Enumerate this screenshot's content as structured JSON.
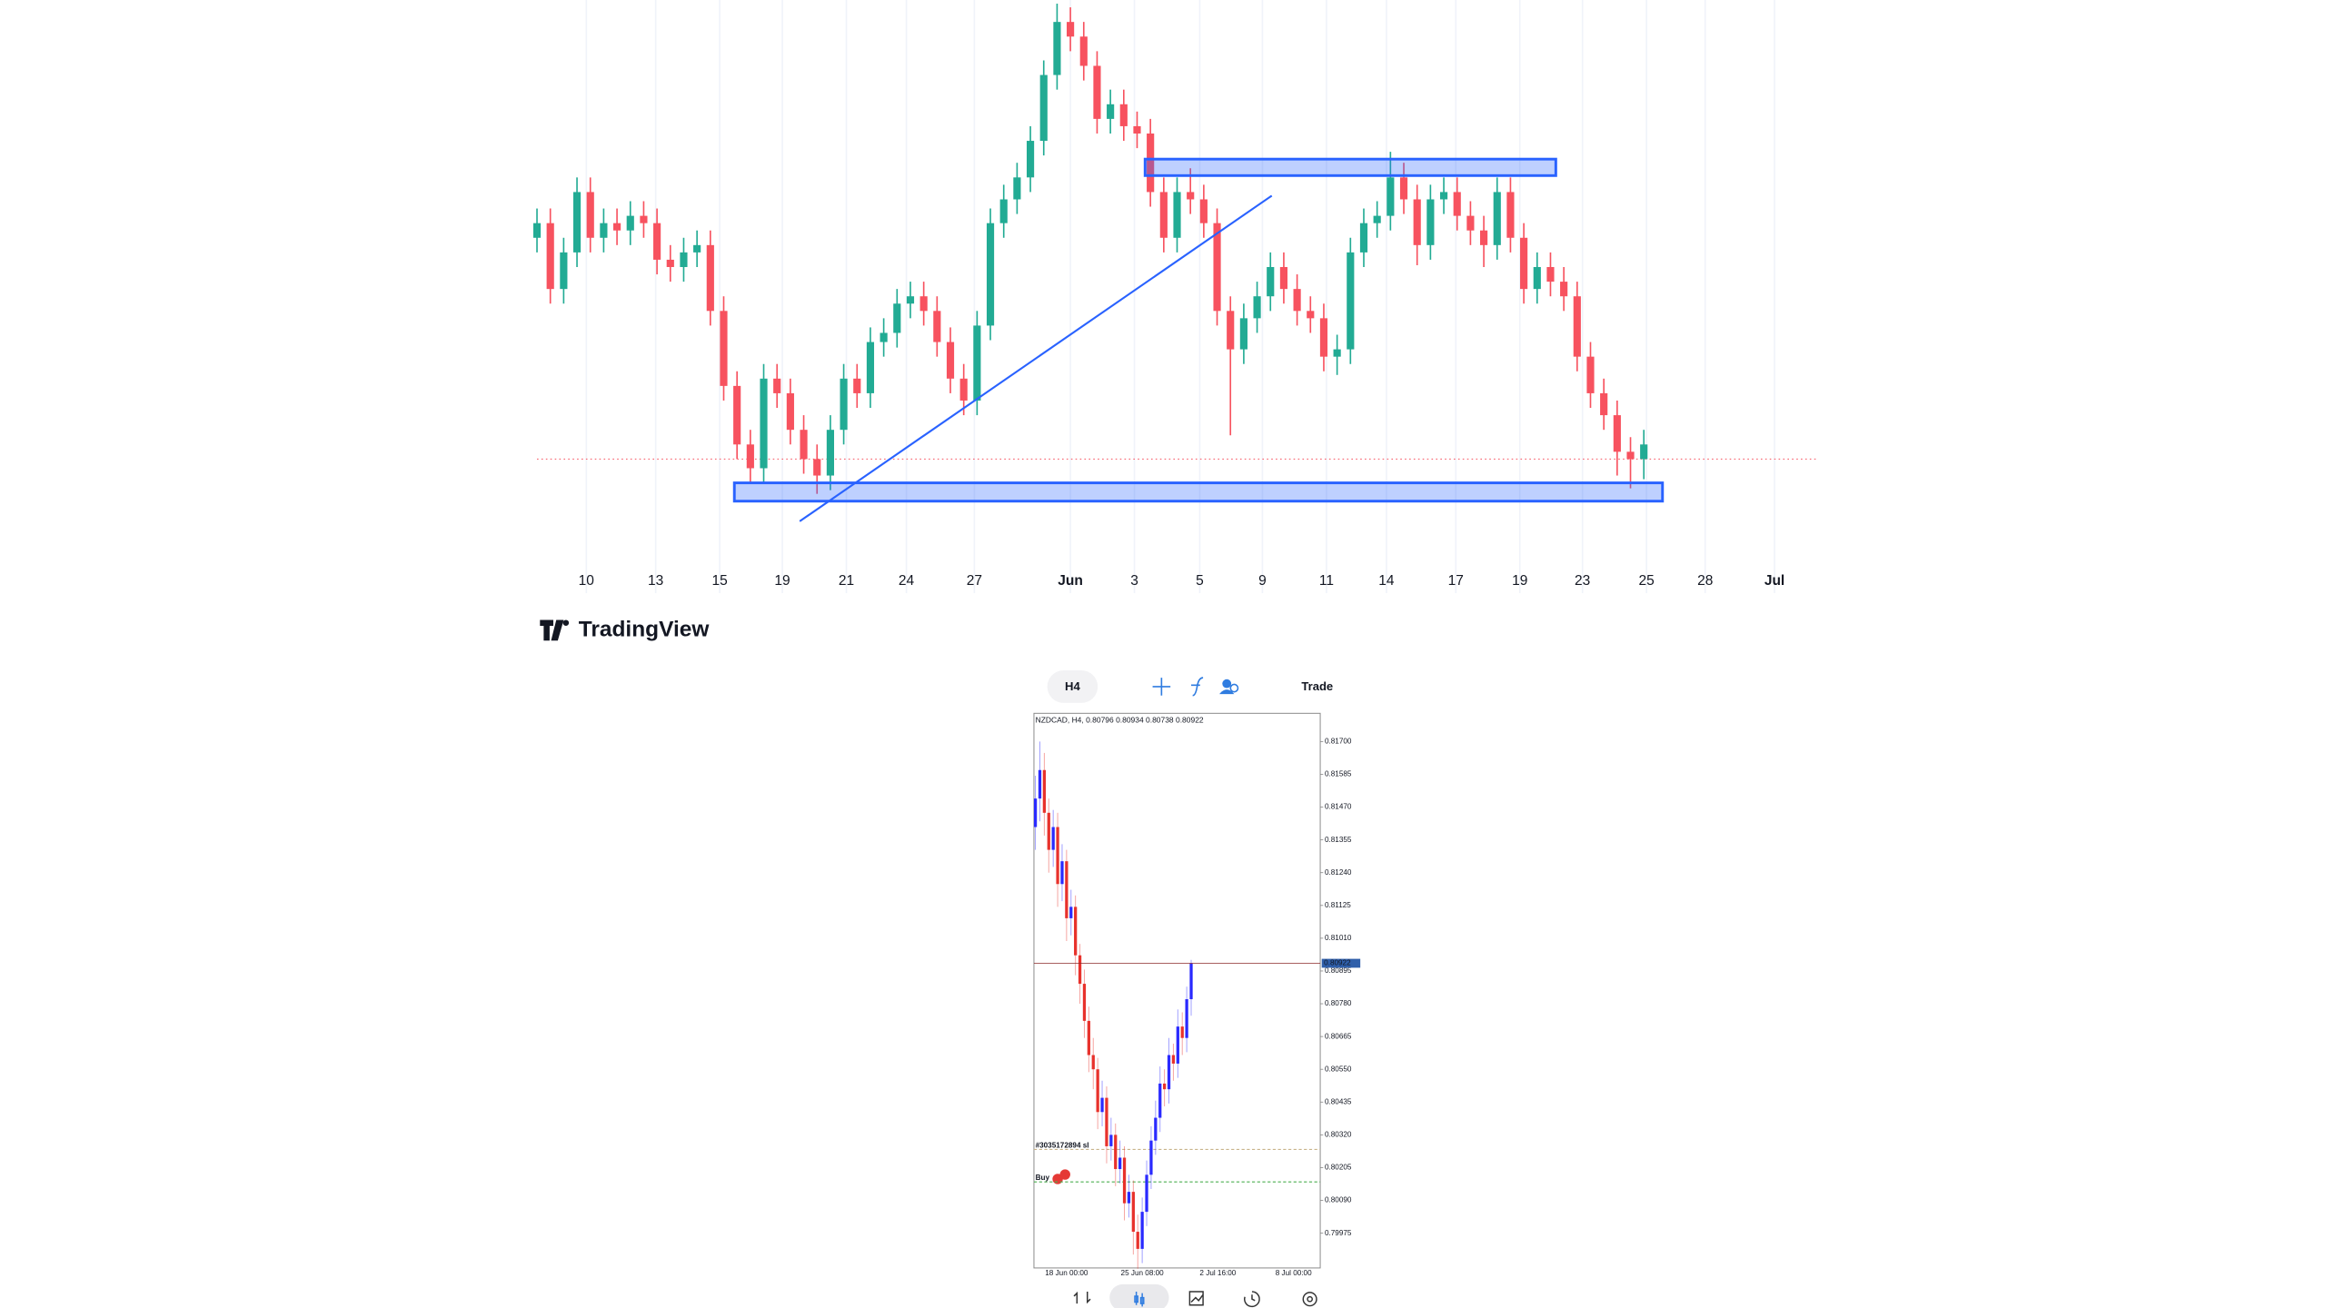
{
  "chart_data": [
    {
      "type": "candlestick",
      "logo": "TradingView",
      "up_color": "#22ab94",
      "down_color": "#f7525f",
      "zone_color": "#2962ff",
      "price_line_color": "#f7525f",
      "grid": true,
      "xlim": [
        0,
        96
      ],
      "ylim": [
        0.795,
        0.825
      ],
      "xticks": [
        {
          "value": 3.7,
          "label": "10"
        },
        {
          "value": 8.9,
          "label": "13"
        },
        {
          "value": 13.7,
          "label": "15"
        },
        {
          "value": 18.4,
          "label": "19"
        },
        {
          "value": 23.2,
          "label": "21"
        },
        {
          "value": 27.7,
          "label": "24"
        },
        {
          "value": 32.8,
          "label": "27"
        },
        {
          "value": 40,
          "label": "Jun"
        },
        {
          "value": 44.8,
          "label": "3"
        },
        {
          "value": 49.7,
          "label": "5"
        },
        {
          "value": 54.4,
          "label": "9"
        },
        {
          "value": 59.2,
          "label": "11"
        },
        {
          "value": 63.7,
          "label": "14"
        },
        {
          "value": 68.9,
          "label": "17"
        },
        {
          "value": 73.7,
          "label": "19"
        },
        {
          "value": 78.4,
          "label": "23"
        },
        {
          "value": 83.2,
          "label": "25"
        },
        {
          "value": 87.6,
          "label": "28"
        },
        {
          "value": 92.8,
          "label": "Jul"
        }
      ],
      "open": [
        0.812,
        0.8128,
        0.8092,
        0.8112,
        0.8145,
        0.812,
        0.8128,
        0.8124,
        0.8132,
        0.8128,
        0.8108,
        0.8104,
        0.8112,
        0.8116,
        0.808,
        0.8039,
        0.8007,
        0.7994,
        0.8043,
        0.8035,
        0.8015,
        0.7999,
        0.799,
        0.8015,
        0.8043,
        0.8035,
        0.8063,
        0.8068,
        0.8084,
        0.8088,
        0.808,
        0.8063,
        0.8043,
        0.8031,
        0.8072,
        0.8128,
        0.8141,
        0.8153,
        0.8173,
        0.8209,
        0.8238,
        0.823,
        0.8214,
        0.8185,
        0.8193,
        0.8181,
        0.8177,
        0.8145,
        0.812,
        0.8145,
        0.8141,
        0.8128,
        0.808,
        0.8059,
        0.8076,
        0.8088,
        0.8104,
        0.8092,
        0.808,
        0.8076,
        0.8055,
        0.8059,
        0.8112,
        0.8128,
        0.8132,
        0.8153,
        0.8141,
        0.8116,
        0.8141,
        0.8145,
        0.8132,
        0.8124,
        0.8116,
        0.8145,
        0.812,
        0.8092,
        0.8104,
        0.8096,
        0.8088,
        0.8055,
        0.8035,
        0.8023,
        0.8003,
        0.7999
      ],
      "high": [
        0.8136,
        0.8136,
        0.812,
        0.8153,
        0.8153,
        0.8136,
        0.8136,
        0.814,
        0.814,
        0.8136,
        0.8116,
        0.812,
        0.8124,
        0.8124,
        0.8088,
        0.8047,
        0.8015,
        0.8051,
        0.8051,
        0.8043,
        0.8023,
        0.8007,
        0.8023,
        0.8051,
        0.8051,
        0.8071,
        0.8076,
        0.8092,
        0.8096,
        0.8096,
        0.8088,
        0.8071,
        0.8051,
        0.808,
        0.8136,
        0.8149,
        0.8161,
        0.8181,
        0.8217,
        0.8248,
        0.8246,
        0.8238,
        0.8222,
        0.8201,
        0.8201,
        0.8189,
        0.8185,
        0.8153,
        0.8153,
        0.8158,
        0.8149,
        0.8136,
        0.8088,
        0.8084,
        0.8096,
        0.8112,
        0.8112,
        0.81,
        0.8088,
        0.8084,
        0.8067,
        0.812,
        0.8136,
        0.814,
        0.8167,
        0.8161,
        0.8149,
        0.8149,
        0.8153,
        0.8153,
        0.814,
        0.8132,
        0.8153,
        0.8153,
        0.8128,
        0.8112,
        0.8112,
        0.8104,
        0.8096,
        0.8063,
        0.8043,
        0.8031,
        0.8011,
        0.8015
      ],
      "low": [
        0.8112,
        0.8084,
        0.8084,
        0.8104,
        0.8112,
        0.8112,
        0.8116,
        0.8116,
        0.812,
        0.81,
        0.8096,
        0.8096,
        0.8104,
        0.8072,
        0.8031,
        0.7999,
        0.7986,
        0.7986,
        0.8027,
        0.8007,
        0.7991,
        0.798,
        0.7982,
        0.8007,
        0.8027,
        0.8027,
        0.8055,
        0.806,
        0.8076,
        0.8072,
        0.8055,
        0.8035,
        0.8023,
        0.8023,
        0.8064,
        0.812,
        0.8133,
        0.8145,
        0.8165,
        0.8201,
        0.8222,
        0.8206,
        0.8177,
        0.8177,
        0.8173,
        0.8169,
        0.8137,
        0.8112,
        0.8112,
        0.8133,
        0.812,
        0.8072,
        0.8012,
        0.8051,
        0.8068,
        0.808,
        0.8084,
        0.8072,
        0.8068,
        0.8047,
        0.8045,
        0.8051,
        0.8104,
        0.812,
        0.8124,
        0.8133,
        0.8105,
        0.8108,
        0.8133,
        0.8124,
        0.8116,
        0.8104,
        0.8108,
        0.8112,
        0.8084,
        0.8084,
        0.8088,
        0.808,
        0.8047,
        0.8027,
        0.8015,
        0.799,
        0.7983,
        0.7988
      ],
      "close": [
        0.8128,
        0.8092,
        0.8112,
        0.8145,
        0.812,
        0.8128,
        0.8124,
        0.8132,
        0.8128,
        0.8108,
        0.8104,
        0.8112,
        0.8116,
        0.808,
        0.8039,
        0.8007,
        0.7994,
        0.8043,
        0.8035,
        0.8015,
        0.7999,
        0.799,
        0.8015,
        0.8043,
        0.8035,
        0.8063,
        0.8068,
        0.8084,
        0.8088,
        0.808,
        0.8063,
        0.8043,
        0.8031,
        0.8072,
        0.8128,
        0.8141,
        0.8153,
        0.8173,
        0.8209,
        0.8238,
        0.823,
        0.8214,
        0.8185,
        0.8193,
        0.8181,
        0.8177,
        0.8145,
        0.812,
        0.8145,
        0.8141,
        0.8128,
        0.808,
        0.8059,
        0.8076,
        0.8088,
        0.8104,
        0.8092,
        0.808,
        0.8076,
        0.8055,
        0.8059,
        0.8112,
        0.8128,
        0.8132,
        0.8153,
        0.8141,
        0.8116,
        0.8141,
        0.8145,
        0.8132,
        0.8124,
        0.8116,
        0.8145,
        0.812,
        0.8092,
        0.8104,
        0.8096,
        0.8088,
        0.8055,
        0.8035,
        0.8023,
        0.8003,
        0.7999,
        0.8007
      ],
      "zones": [
        {
          "x": [
            45.6,
            76.4
          ],
          "y": [
            0.8154,
            0.8163
          ]
        },
        {
          "x": [
            14.8,
            84.4
          ],
          "y": [
            0.7976,
            0.7986
          ]
        }
      ],
      "trendline": {
        "x": [
          19.7,
          55.1
        ],
        "y": [
          0.7965,
          0.8143
        ]
      },
      "price_line": 0.7999
    },
    {
      "type": "candlestick",
      "title": "NZDCAD, H4, 0.80796 0.80934 0.80738 0.80922",
      "timeframe": "H4",
      "trade_button": "Trade",
      "up_color": "#2a2aff",
      "down_color": "#e8322c",
      "last_price_color": "#2f5faa",
      "xlim": [
        -0.33,
        64
      ],
      "ylim": [
        0.79853,
        0.81799
      ],
      "xticks": [
        {
          "value": 7,
          "label": "18 Jun 00:00"
        },
        {
          "value": 24,
          "label": "25 Jun 08:00"
        },
        {
          "value": 41,
          "label": "2 Jul 16:00"
        },
        {
          "value": 58,
          "label": "8 Jul 00:00"
        }
      ],
      "yticks": [
        {
          "value": 0.817,
          "label": "0.81700"
        },
        0.81585,
        {
          "value": 0.8147,
          "label": "0.81470"
        },
        0.81355,
        {
          "value": 0.8124,
          "label": "0.81240"
        },
        0.81125,
        {
          "value": 0.8101,
          "label": "0.81010"
        },
        0.80895,
        {
          "value": 0.8078,
          "label": "0.80780"
        },
        0.80665,
        {
          "value": 0.8055,
          "label": "0.80550"
        },
        0.80435,
        {
          "value": 0.8032,
          "label": "0.80320"
        },
        0.80205,
        {
          "value": 0.8009,
          "label": "0.80090"
        },
        0.79975
      ],
      "open": [
        0.814,
        0.815,
        0.816,
        0.8145,
        0.8132,
        0.814,
        0.812,
        0.8128,
        0.8108,
        0.8112,
        0.8095,
        0.8085,
        0.8072,
        0.806,
        0.8055,
        0.804,
        0.8045,
        0.8028,
        0.8032,
        0.802,
        0.8024,
        0.8008,
        0.8012,
        0.7998,
        0.7992,
        0.8005,
        0.8018,
        0.803,
        0.8038,
        0.805,
        0.8048,
        0.806,
        0.8057,
        0.807,
        0.8066,
        0.80796
      ],
      "high": [
        0.8158,
        0.817,
        0.8166,
        0.815,
        0.8146,
        0.8145,
        0.8134,
        0.8132,
        0.8118,
        0.8116,
        0.8099,
        0.809,
        0.8077,
        0.8066,
        0.8059,
        0.8051,
        0.8049,
        0.8038,
        0.8036,
        0.803,
        0.8028,
        0.8018,
        0.8016,
        0.8004,
        0.801,
        0.8023,
        0.8035,
        0.8044,
        0.8056,
        0.8055,
        0.8066,
        0.8064,
        0.8076,
        0.8075,
        0.8084,
        0.80934
      ],
      "low": [
        0.8132,
        0.8142,
        0.8137,
        0.8124,
        0.8126,
        0.8112,
        0.8114,
        0.81,
        0.8102,
        0.8088,
        0.8078,
        0.8066,
        0.8054,
        0.8048,
        0.8034,
        0.8035,
        0.8022,
        0.8023,
        0.8014,
        0.8015,
        0.8002,
        0.8003,
        0.799,
        0.7985,
        0.7987,
        0.8,
        0.8013,
        0.8025,
        0.8033,
        0.8042,
        0.8043,
        0.8051,
        0.8052,
        0.806,
        0.8061,
        0.80738
      ],
      "close": [
        0.815,
        0.816,
        0.8145,
        0.8132,
        0.814,
        0.812,
        0.8128,
        0.8108,
        0.8112,
        0.8095,
        0.8085,
        0.8072,
        0.806,
        0.8055,
        0.804,
        0.8045,
        0.8028,
        0.8032,
        0.802,
        0.8024,
        0.8008,
        0.8012,
        0.7998,
        0.7992,
        0.8005,
        0.8018,
        0.803,
        0.8038,
        0.805,
        0.8048,
        0.806,
        0.8057,
        0.807,
        0.8066,
        0.80796,
        0.80922
      ],
      "last_price": 0.80922,
      "order_lines": [
        {
          "label": "#3035172894 sl",
          "value": 0.80269,
          "color": "#c9b48c"
        },
        {
          "label": "Buy",
          "value": 0.80155,
          "color": "#4caf50"
        }
      ]
    }
  ]
}
